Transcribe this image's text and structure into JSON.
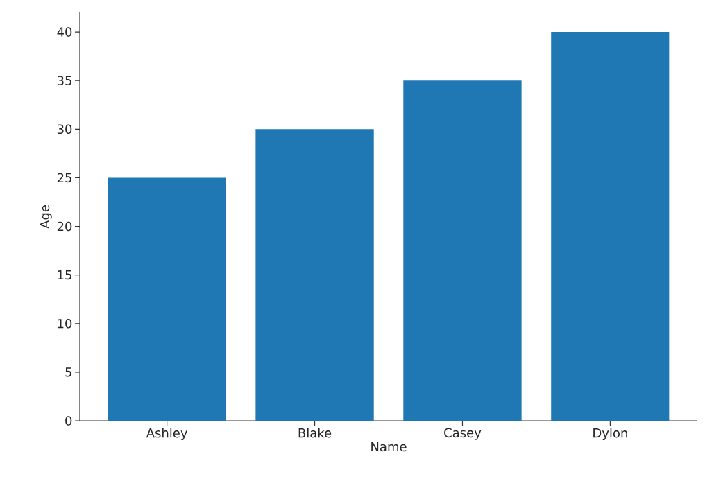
{
  "chart_data": {
    "type": "bar",
    "xlabel": "Name",
    "ylabel": "Age",
    "categories": [
      "Ashley",
      "Blake",
      "Casey",
      "Dylon"
    ],
    "values": [
      25,
      30,
      35,
      40
    ],
    "color": "#1f77b4",
    "ylim": [
      0,
      42
    ],
    "yticks": [
      0,
      5,
      10,
      15,
      20,
      25,
      30,
      35,
      40
    ],
    "grid": false
  }
}
